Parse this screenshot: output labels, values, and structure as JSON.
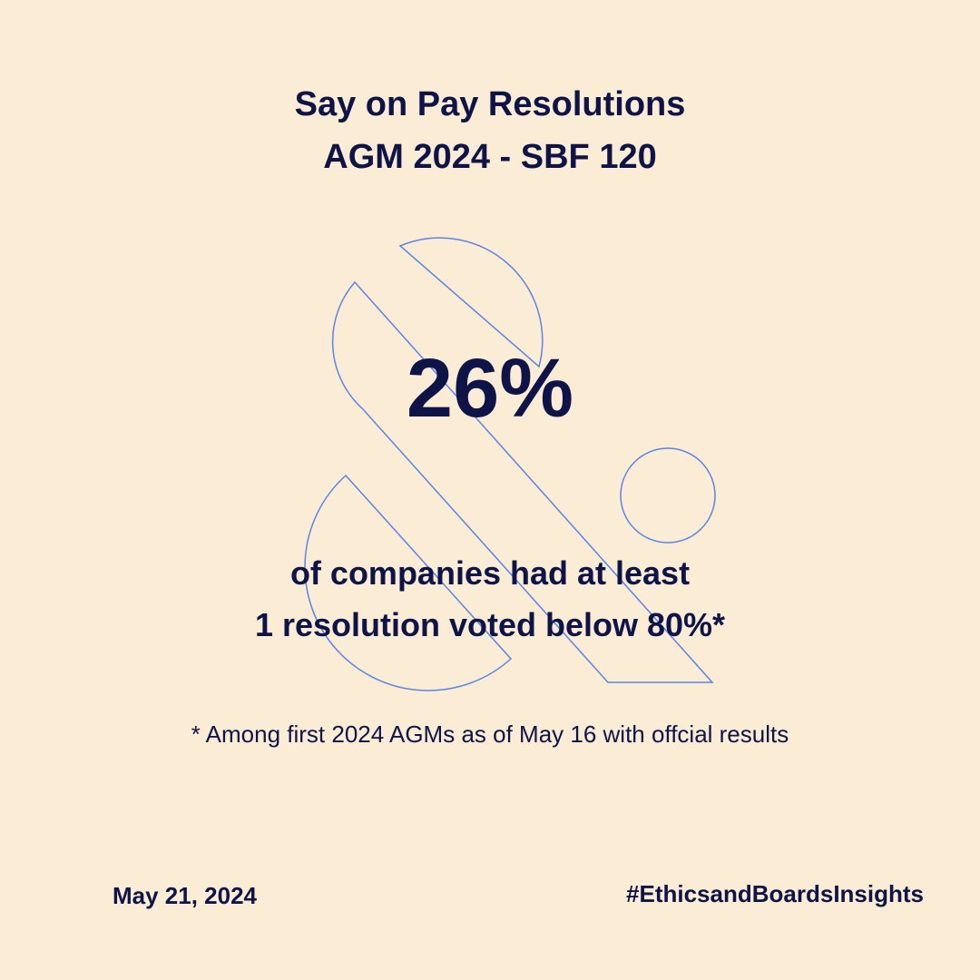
{
  "title": {
    "line1": "Say on Pay Resolutions",
    "line2": "AGM 2024 - SBF 120"
  },
  "stat": {
    "value": "26%",
    "description_line1": "of companies had at least",
    "description_line2": "1 resolution voted below 80%*"
  },
  "footnote": "* Among first 2024 AGMs as of May 16 with offcial results",
  "footer": {
    "date": "May 21, 2024",
    "hashtag": "#EthicsandBoardsInsights"
  },
  "colors": {
    "background": "#FBECD5",
    "text": "#0E1448",
    "outline_accent": "#5B84E6"
  },
  "icons": {
    "background_mark": "ampersand-outline-icon"
  }
}
